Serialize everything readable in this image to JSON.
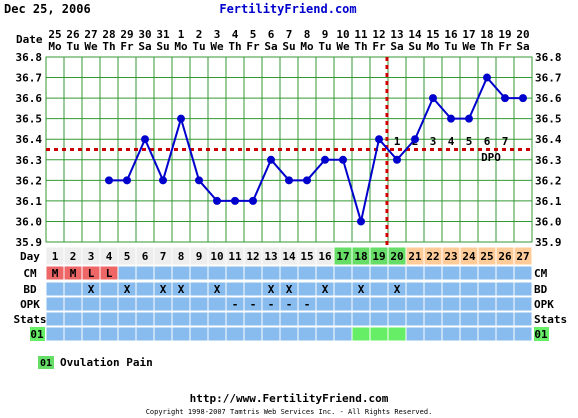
{
  "header": {
    "date": "Dec 25, 2006",
    "site": "FertilityFriend.com"
  },
  "chart_data": {
    "type": "line",
    "title": "",
    "xlabel": "Date",
    "ylabel": "",
    "ylim": [
      35.9,
      36.8
    ],
    "yticks": [
      "35.9",
      "36.0",
      "36.1",
      "36.2",
      "36.3",
      "36.4",
      "36.5",
      "36.6",
      "36.7",
      "36.8"
    ],
    "dates": [
      "25",
      "26",
      "27",
      "28",
      "29",
      "30",
      "31",
      "1",
      "2",
      "3",
      "4",
      "5",
      "6",
      "7",
      "8",
      "9",
      "10",
      "11",
      "12",
      "13",
      "14",
      "15",
      "16",
      "17",
      "18",
      "19",
      "20"
    ],
    "weekdays": [
      "Mo",
      "Tu",
      "We",
      "Th",
      "Fr",
      "Sa",
      "Su",
      "Mo",
      "Tu",
      "We",
      "Th",
      "Fr",
      "Sa",
      "Su",
      "Mo",
      "Tu",
      "We",
      "Th",
      "Fr",
      "Sa",
      "Su",
      "Mo",
      "Tu",
      "We",
      "Th",
      "Fr",
      "Sa"
    ],
    "cycle_days": [
      "1",
      "2",
      "3",
      "4",
      "5",
      "6",
      "7",
      "8",
      "9",
      "10",
      "11",
      "12",
      "13",
      "14",
      "15",
      "16",
      "17",
      "18",
      "19",
      "20",
      "21",
      "22",
      "23",
      "24",
      "25",
      "26",
      "27"
    ],
    "series": [
      {
        "values": [
          null,
          null,
          null,
          36.2,
          36.2,
          36.4,
          36.2,
          36.5,
          36.2,
          36.1,
          36.1,
          36.1,
          36.3,
          36.2,
          36.2,
          36.3,
          36.3,
          36.0,
          36.4,
          36.3,
          36.4,
          36.6,
          36.5,
          36.5,
          36.7,
          36.6,
          36.6
        ],
        "color": "#0000cc"
      }
    ],
    "coverline": 36.35,
    "ovulation_day_index": 19,
    "dpo_numbers": [
      "1",
      "2",
      "3",
      "4",
      "5",
      "6",
      "7"
    ],
    "dpo_label": "DPO",
    "fertile_days": [
      16,
      17,
      18,
      19
    ],
    "luteal_start": 20,
    "rows": {
      "cm": {
        "label": "CM",
        "values": {
          "0": "M",
          "1": "M",
          "2": "L",
          "3": "L"
        }
      },
      "bd": {
        "label": "BD",
        "marks": [
          2,
          4,
          6,
          7,
          9,
          12,
          13,
          15,
          17,
          19
        ],
        "mark": "X"
      },
      "opk": {
        "label": "OPK",
        "marks": [
          10,
          11,
          12,
          13,
          14
        ],
        "mark": "-"
      },
      "stats": {
        "label": "Stats"
      },
      "symptom": {
        "label": "01",
        "days": [
          17,
          18,
          19
        ]
      }
    },
    "legend": [
      {
        "code": "01",
        "text": "Ovulation Pain",
        "color": "#66dd66"
      }
    ],
    "colors": {
      "line": "#0000cc",
      "coverline": "#cc0000",
      "grid": "#339933",
      "follicular_day": "#eeeeee",
      "fertile_day": "#66dd66",
      "luteal_day": "#ffcc99",
      "row_blue": "#88bbee",
      "cm_cell": "#ee6666",
      "symptom_cell": "#66ee66"
    }
  },
  "footer": {
    "url": "http://www.FertilityFriend.com",
    "copyright": "Copyright 1998-2007 Tamtris Web Services Inc. - All Rights Reserved."
  }
}
